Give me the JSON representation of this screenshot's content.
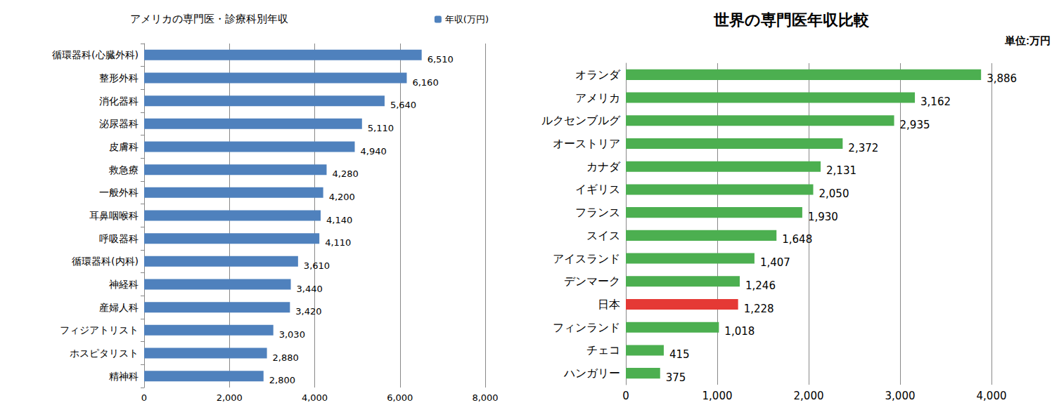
{
  "chart_data": [
    {
      "type": "bar",
      "orientation": "horizontal",
      "title": "アメリカの専門医・診療科別年収",
      "categories": [
        "循環器科(心臓外科)",
        "整形外科",
        "消化器科",
        "泌尿器科",
        "皮膚科",
        "救急療",
        "一般外科",
        "耳鼻咽喉科",
        "呼吸器科",
        "循環器科(内科)",
        "神経科",
        "産婦人科",
        "フィジアトリスト",
        "ホスピタリスト",
        "精神科"
      ],
      "series": [
        {
          "name": "年収(万円)",
          "color": "#4f81bd",
          "values": [
            6510,
            6160,
            5640,
            5110,
            4940,
            4280,
            4200,
            4140,
            4110,
            3610,
            3440,
            3420,
            3030,
            2880,
            2800
          ],
          "value_labels": [
            "6,510",
            "6,160",
            "5,640",
            "5,110",
            "4,940",
            "4,280",
            "4,200",
            "4,140",
            "4,110",
            "3,610",
            "3,440",
            "3,420",
            "3,030",
            "2,880",
            "2,800"
          ]
        }
      ],
      "xlim": [
        0,
        8000
      ],
      "xticks": [
        0,
        {
          "value": 2000,
          "label": "2,000"
        },
        {
          "value": 4000,
          "label": "4,000"
        },
        {
          "value": 6000,
          "label": "6,000"
        },
        {
          "value": 8000,
          "label": "8,000"
        }
      ],
      "grid": true,
      "legend": "top-right",
      "data_labels": true
    },
    {
      "type": "bar",
      "orientation": "horizontal",
      "title": "世界の専門医年収比較",
      "annotations": [
        "単位:万円"
      ],
      "categories": [
        "オランダ",
        "アメリカ",
        "ルクセンブルグ",
        "オーストリア",
        "カナダ",
        "イギリス",
        "フランス",
        "スイス",
        "アイスランド",
        "デンマーク",
        "日本",
        "フィンランド",
        "チェコ",
        "ハンガリー"
      ],
      "values": [
        3886,
        3162,
        2935,
        2372,
        2131,
        2050,
        1930,
        1648,
        1407,
        1246,
        1228,
        1018,
        415,
        375
      ],
      "value_labels": [
        "3,886",
        "3,162",
        "2,935",
        "2,372",
        "2,131",
        "2,050",
        "1,930",
        "1,648",
        "1,407",
        "1,246",
        "1,228",
        "1,018",
        "415",
        "375"
      ],
      "colors": [
        "#4caf50",
        "#4caf50",
        "#4caf50",
        "#4caf50",
        "#4caf50",
        "#4caf50",
        "#4caf50",
        "#4caf50",
        "#4caf50",
        "#4caf50",
        "#e53935",
        "#4caf50",
        "#4caf50",
        "#4caf50"
      ],
      "xlim": [
        0,
        4000
      ],
      "xticks": [
        0,
        {
          "value": 1000,
          "label": "1,000"
        },
        {
          "value": 2000,
          "label": "2,000"
        },
        {
          "value": 3000,
          "label": "3,000"
        },
        {
          "value": 4000,
          "label": "4,000"
        }
      ],
      "grid": true,
      "data_labels": true
    }
  ]
}
